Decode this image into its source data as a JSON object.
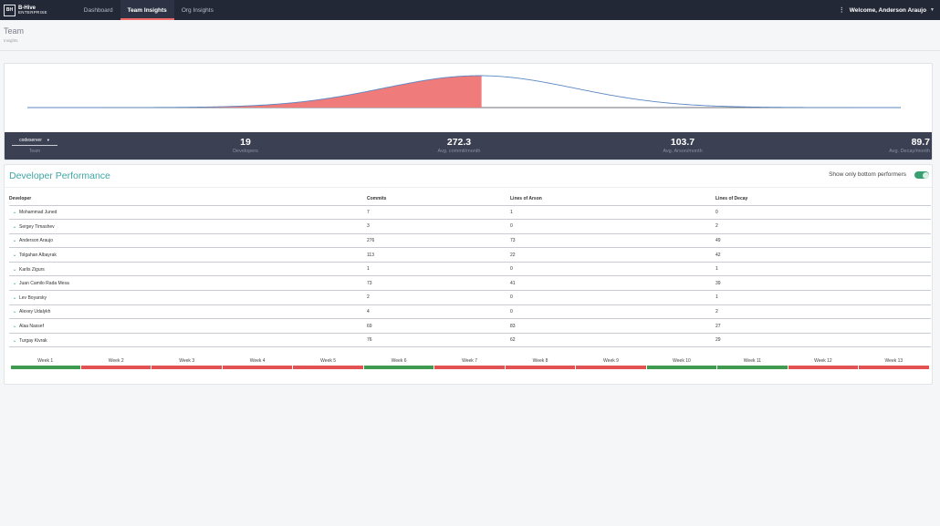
{
  "navbar": {
    "logo_mark": "BH",
    "logo_name": "B-Hive",
    "logo_sub": "ENTERPRISE",
    "links": [
      {
        "label": "Dashboard",
        "active": false
      },
      {
        "label": "Team Insights",
        "active": true
      },
      {
        "label": "Org Insights",
        "active": false
      }
    ],
    "user_greeting": "Welcome, Anderson Araujo",
    "icons": {
      "menu": "vertical-dots-icon",
      "caret": "caret-down-icon"
    }
  },
  "page": {
    "title": "Team",
    "subtitle": "Insights"
  },
  "distribution": {
    "highlight_color": "#f07b7b",
    "curve_color": "#5b86c2",
    "highlight_fraction": 0.52
  },
  "stats": {
    "team_select_value": "codeserver",
    "team_label": "Team",
    "items": [
      {
        "value": "19",
        "label": "Developers"
      },
      {
        "value": "272.3",
        "label": "Avg. commit/month"
      },
      {
        "value": "103.7",
        "label": "Avg. Arson/month"
      },
      {
        "value": "89.7",
        "label": "Avg. Decay/month"
      }
    ]
  },
  "performance": {
    "title": "Developer Performance",
    "toggle_label": "Show only bottom performers",
    "toggle_on": true,
    "columns": [
      "Developer",
      "Commits",
      "Lines of Arson",
      "Lines of Decay"
    ],
    "rows": [
      {
        "name": "Mohammad Juned",
        "commits": "7",
        "arson": "1",
        "decay": "0"
      },
      {
        "name": "Sergey Timashev",
        "commits": "3",
        "arson": "0",
        "decay": "2"
      },
      {
        "name": "Anderson Araujo",
        "commits": "276",
        "arson": "73",
        "decay": "49"
      },
      {
        "name": "Tolgahan Albayrak",
        "commits": "113",
        "arson": "22",
        "decay": "42"
      },
      {
        "name": "Karlis Zigurs",
        "commits": "1",
        "arson": "0",
        "decay": "1"
      },
      {
        "name": "Juan Camilo Rada Mesa",
        "commits": "73",
        "arson": "41",
        "decay": "39"
      },
      {
        "name": "Lev Boyarsky",
        "commits": "2",
        "arson": "0",
        "decay": "1"
      },
      {
        "name": "Alexey Udalykh",
        "commits": "4",
        "arson": "0",
        "decay": "2"
      },
      {
        "name": "Alaa Nassef",
        "commits": "69",
        "arson": "83",
        "decay": "27"
      },
      {
        "name": "Turgay Kivrak",
        "commits": "76",
        "arson": "62",
        "decay": "29"
      }
    ],
    "weeks": [
      {
        "label": "Week 1",
        "status": "good"
      },
      {
        "label": "Week 2",
        "status": "bad"
      },
      {
        "label": "Week 3",
        "status": "bad"
      },
      {
        "label": "Week 4",
        "status": "bad"
      },
      {
        "label": "Week 5",
        "status": "bad"
      },
      {
        "label": "Week 6",
        "status": "good"
      },
      {
        "label": "Week 7",
        "status": "bad"
      },
      {
        "label": "Week 8",
        "status": "bad"
      },
      {
        "label": "Week 9",
        "status": "bad"
      },
      {
        "label": "Week 10",
        "status": "good"
      },
      {
        "label": "Week 11",
        "status": "good"
      },
      {
        "label": "Week 12",
        "status": "bad"
      },
      {
        "label": "Week 13",
        "status": "bad"
      }
    ],
    "status_colors": {
      "good": "#3e9b4f",
      "bad": "#e35252"
    }
  }
}
